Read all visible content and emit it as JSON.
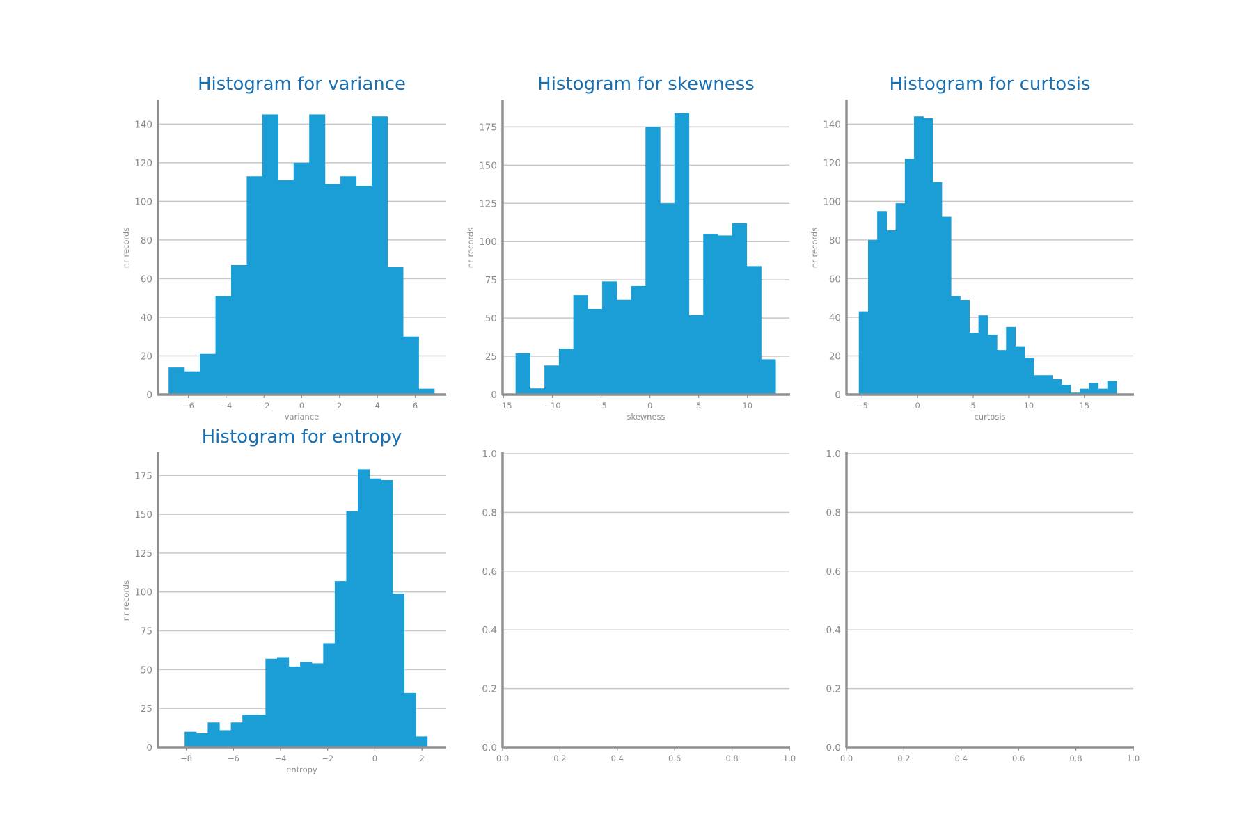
{
  "chart_data": [
    {
      "type": "bar",
      "title": "Histogram for variance",
      "xlabel": "variance",
      "ylabel": "nr records",
      "xlim": [
        -7.6,
        7.6
      ],
      "ylim": [
        0,
        152
      ],
      "xticks": [
        -6,
        -4,
        -2,
        0,
        2,
        4,
        6
      ],
      "yticks": [
        0,
        20,
        40,
        60,
        80,
        100,
        120,
        140
      ],
      "bin_start": -7.04,
      "bin_width": 0.826,
      "values": [
        14,
        12,
        21,
        51,
        67,
        113,
        145,
        111,
        120,
        145,
        109,
        113,
        108,
        144,
        66,
        30,
        3
      ]
    },
    {
      "type": "bar",
      "title": "Histogram for skewness",
      "xlabel": "skewness",
      "ylabel": "nr records",
      "xlim": [
        -15.1,
        14.3
      ],
      "ylim": [
        0,
        192
      ],
      "xticks": [
        -15,
        -10,
        -5,
        0,
        5,
        10
      ],
      "yticks": [
        0,
        25,
        50,
        75,
        100,
        125,
        150,
        175
      ],
      "bin_start": -13.77,
      "bin_width": 1.48,
      "values": [
        27,
        4,
        19,
        30,
        65,
        56,
        74,
        62,
        71,
        175,
        125,
        184,
        52,
        105,
        104,
        112,
        84,
        23
      ]
    },
    {
      "type": "bar",
      "title": "Histogram for curtosis",
      "xlabel": "curtosis",
      "ylabel": "nr records",
      "xlim": [
        -6.4,
        19.4
      ],
      "ylim": [
        0,
        152
      ],
      "xticks": [
        -5,
        0,
        5,
        10,
        15
      ],
      "yticks": [
        0,
        20,
        40,
        60,
        80,
        100,
        120,
        140
      ],
      "bin_start": -5.29,
      "bin_width": 0.828,
      "values": [
        43,
        80,
        95,
        85,
        99,
        122,
        144,
        143,
        110,
        92,
        51,
        49,
        32,
        41,
        31,
        23,
        35,
        25,
        19,
        10,
        10,
        8,
        5,
        1,
        3,
        6,
        3,
        7
      ]
    },
    {
      "type": "bar",
      "title": "Histogram for entropy",
      "xlabel": "entropy",
      "ylabel": "nr records",
      "xlim": [
        -9.2,
        3.0
      ],
      "ylim": [
        0,
        189
      ],
      "xticks": [
        -8,
        -6,
        -4,
        -2,
        0,
        2
      ],
      "yticks": [
        0,
        25,
        50,
        75,
        100,
        125,
        150,
        175
      ],
      "bin_start": -8.07,
      "bin_width": 0.49,
      "values": [
        10,
        9,
        16,
        11,
        16,
        21,
        21,
        57,
        58,
        52,
        55,
        54,
        67,
        107,
        152,
        179,
        173,
        172,
        99,
        35,
        7
      ]
    },
    {
      "type": "bar",
      "title": "",
      "xlabel": "",
      "ylabel": "",
      "xlim": [
        0,
        1
      ],
      "ylim": [
        0,
        1
      ],
      "xticks": [
        0.0,
        0.2,
        0.4,
        0.6,
        0.8,
        1.0
      ],
      "yticks": [
        0.0,
        0.2,
        0.4,
        0.6,
        0.8,
        1.0
      ],
      "values": []
    },
    {
      "type": "bar",
      "title": "",
      "xlabel": "",
      "ylabel": "",
      "xlim": [
        0,
        1
      ],
      "ylim": [
        0,
        1
      ],
      "xticks": [
        0.0,
        0.2,
        0.4,
        0.6,
        0.8,
        1.0
      ],
      "yticks": [
        0.0,
        0.2,
        0.4,
        0.6,
        0.8,
        1.0
      ],
      "values": []
    }
  ],
  "colors": {
    "bar": "#1b9ed6",
    "title": "#1a6fb0",
    "axis": "#8f8f8f",
    "grid": "#c8c8c8",
    "text": "#8a8a8a"
  }
}
